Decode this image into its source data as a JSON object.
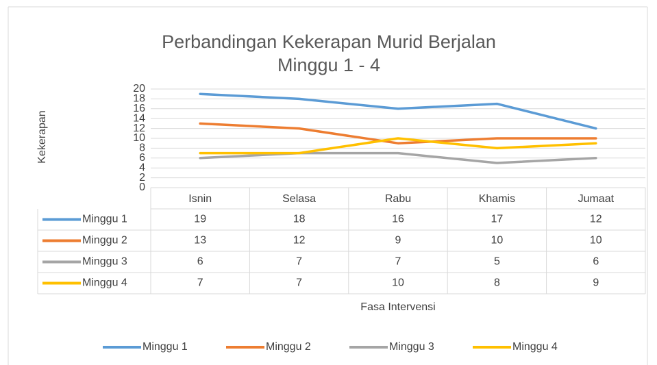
{
  "chart_data": {
    "type": "line",
    "title": "Perbandingan Kekerapan Murid Berjalan Minggu 1 - 4",
    "xlabel": "Fasa Intervensi",
    "ylabel": "Kekerapan",
    "categories": [
      "Isnin",
      "Selasa",
      "Rabu",
      "Khamis",
      "Jumaat"
    ],
    "series": [
      {
        "name": "Minggu 1",
        "color": "#5b9bd5",
        "values": [
          19,
          18,
          16,
          17,
          12
        ]
      },
      {
        "name": "Minggu 2",
        "color": "#ed7d31",
        "values": [
          13,
          12,
          9,
          10,
          10
        ]
      },
      {
        "name": "Minggu 3",
        "color": "#a5a5a5",
        "values": [
          6,
          7,
          7,
          5,
          6
        ]
      },
      {
        "name": "Minggu 4",
        "color": "#ffc000",
        "values": [
          7,
          7,
          10,
          8,
          9
        ]
      }
    ],
    "ylim": [
      0,
      20
    ],
    "yticks": [
      0,
      2,
      4,
      6,
      8,
      10,
      12,
      14,
      16,
      18,
      20
    ],
    "grid": true,
    "legend": "bottom",
    "data_table": true
  }
}
